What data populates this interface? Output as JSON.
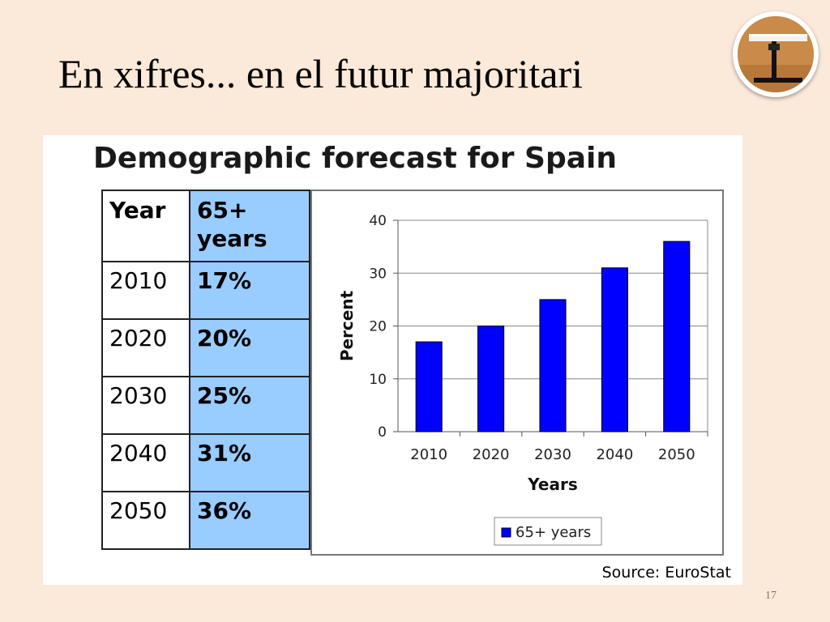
{
  "slide": {
    "title": "En xifres... en el futur majoritari",
    "page_number": "17"
  },
  "panel": {
    "title": "Demographic forecast for Spain",
    "source": "Source: EuroStat"
  },
  "table": {
    "headers": [
      "Year",
      "65+ years"
    ],
    "rows": [
      {
        "year": "2010",
        "pct": "17%"
      },
      {
        "year": "2020",
        "pct": "20%"
      },
      {
        "year": "2030",
        "pct": "25%"
      },
      {
        "year": "2040",
        "pct": "31%"
      },
      {
        "year": "2050",
        "pct": "36%"
      }
    ],
    "highlight_color": "#99ccff"
  },
  "chart_data": {
    "type": "bar",
    "title": "Demographic forecast for Spain",
    "categories": [
      "2010",
      "2020",
      "2030",
      "2040",
      "2050"
    ],
    "series": [
      {
        "name": "65+ years",
        "values": [
          17,
          20,
          25,
          31,
          36
        ],
        "color": "#0000ff"
      }
    ],
    "xlabel": "Years",
    "ylabel": "Percent",
    "ylim": [
      0,
      40
    ],
    "yticks": [
      0,
      10,
      20,
      30,
      40
    ],
    "grid": true,
    "legend": "bottom"
  }
}
